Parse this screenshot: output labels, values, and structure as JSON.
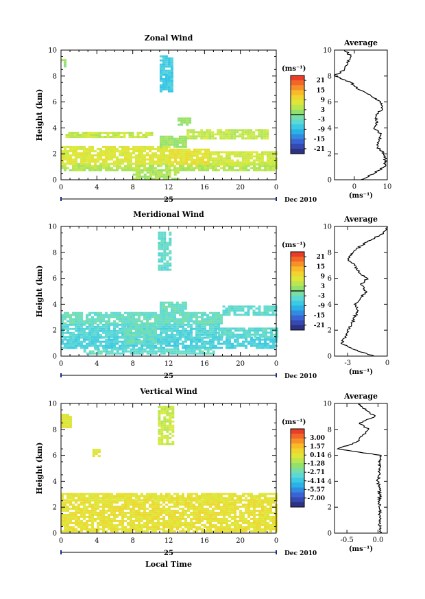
{
  "chart_data": [
    {
      "type": "heatmap",
      "title": "Zonal Wind",
      "ylabel": "Height (km)",
      "xlabel": "",
      "x_ticks": [
        "0",
        "4",
        "8",
        "12",
        "16",
        "20",
        "0"
      ],
      "y_ticks": [
        "0",
        "2",
        "4",
        "6",
        "8",
        "10"
      ],
      "xlim": [
        0,
        24
      ],
      "ylim": [
        0,
        10
      ],
      "date_day": "25",
      "date_month": "Dec 2010",
      "colorbar": {
        "unit": "(ms⁻¹)",
        "range": [
          -24,
          24
        ],
        "tick_labels": [
          "21",
          "15",
          "9",
          "3",
          "-3",
          "-9",
          "-15",
          "-21"
        ],
        "tick_values": [
          21,
          15,
          9,
          3,
          -3,
          -9,
          -15,
          -21
        ],
        "zero_line": 0
      },
      "regions": [
        {
          "x0": 0,
          "x1": 24,
          "y0": 0.7,
          "y1": 1.3,
          "value": 4
        },
        {
          "x0": 0,
          "x1": 12,
          "y0": 1.2,
          "y1": 2.6,
          "value": 7
        },
        {
          "x0": 12,
          "x1": 16.5,
          "y0": 1.2,
          "y1": 2.4,
          "value": 8
        },
        {
          "x0": 16.5,
          "x1": 24,
          "y0": 1.2,
          "y1": 2.2,
          "value": 6
        },
        {
          "x0": 8,
          "x1": 13,
          "y0": 0.1,
          "y1": 0.8,
          "value": 3
        },
        {
          "x0": 11,
          "x1": 14,
          "y0": 2.6,
          "y1": 3.4,
          "value": 2
        },
        {
          "x0": 14,
          "x1": 23,
          "y0": 3.2,
          "y1": 3.9,
          "value": 5
        },
        {
          "x0": 0.5,
          "x1": 10,
          "y0": 3.3,
          "y1": 3.7,
          "value": 5
        },
        {
          "x0": 11,
          "x1": 12.5,
          "y0": 6.8,
          "y1": 9.6,
          "value": -7
        },
        {
          "x0": 13,
          "x1": 14.5,
          "y0": 4.2,
          "y1": 4.8,
          "value": 2
        },
        {
          "x0": 0,
          "x1": 0.4,
          "y0": 8.8,
          "y1": 9.3,
          "value": 1
        }
      ],
      "average": {
        "title": "Average",
        "xlabel": "(ms⁻¹)",
        "x_ticks": [
          "0",
          "10"
        ],
        "x_tick_values": [
          0,
          10
        ],
        "xlim": [
          -6,
          10
        ],
        "heights": [
          0,
          0.5,
          1,
          1.5,
          2,
          2.5,
          3,
          3.5,
          4,
          4.5,
          5,
          5.5,
          6,
          6.5,
          7,
          7.5,
          8,
          8.5,
          9,
          9.5,
          10
        ],
        "values": [
          2,
          6,
          9,
          9.5,
          9,
          7,
          7.5,
          8,
          6,
          7,
          6.5,
          8.5,
          8,
          5,
          1,
          -1,
          -6,
          -3,
          -2,
          -1,
          -3
        ]
      }
    },
    {
      "type": "heatmap",
      "title": "Meridional Wind",
      "ylabel": "Height (km)",
      "xlabel": "",
      "x_ticks": [
        "0",
        "4",
        "8",
        "12",
        "16",
        "20",
        "0"
      ],
      "y_ticks": [
        "0",
        "2",
        "4",
        "6",
        "8",
        "10"
      ],
      "xlim": [
        0,
        24
      ],
      "ylim": [
        0,
        10
      ],
      "date_day": "25",
      "date_month": "Dec 2010",
      "colorbar": {
        "unit": "(ms⁻¹)",
        "range": [
          -24,
          24
        ],
        "tick_labels": [
          "21",
          "15",
          "9",
          "3",
          "-3",
          "-9",
          "-15",
          "-21"
        ],
        "tick_values": [
          21,
          15,
          9,
          3,
          -3,
          -9,
          -15,
          -21
        ],
        "zero_line": 0
      },
      "regions": [
        {
          "x0": 0,
          "x1": 24,
          "y0": 0.6,
          "y1": 1.5,
          "value": -6
        },
        {
          "x0": 0,
          "x1": 17.5,
          "y0": 1.5,
          "y1": 2.5,
          "value": -5
        },
        {
          "x0": 17.5,
          "x1": 24,
          "y0": 1.5,
          "y1": 2.2,
          "value": -4
        },
        {
          "x0": 0,
          "x1": 18,
          "y0": 2.5,
          "y1": 3.4,
          "value": -3
        },
        {
          "x0": 7,
          "x1": 10.5,
          "y0": 1.0,
          "y1": 2.5,
          "value": -3
        },
        {
          "x0": 2.5,
          "x1": 17,
          "y0": 0.2,
          "y1": 0.6,
          "value": -4
        },
        {
          "x0": 11,
          "x1": 14,
          "y0": 3.4,
          "y1": 4.2,
          "value": -3
        },
        {
          "x0": 18,
          "x1": 24,
          "y0": 3.2,
          "y1": 3.9,
          "value": -4
        },
        {
          "x0": 10.8,
          "x1": 12.2,
          "y0": 6.6,
          "y1": 9.6,
          "value": -4
        }
      ],
      "average": {
        "title": "Average",
        "xlabel": "(ms⁻¹)",
        "x_ticks": [
          "-3",
          "0"
        ],
        "x_tick_values": [
          -3,
          0
        ],
        "xlim": [
          -4,
          0
        ],
        "heights": [
          0,
          0.5,
          1,
          1.5,
          2,
          2.5,
          3,
          3.5,
          4,
          4.5,
          5,
          5.5,
          6,
          6.5,
          7,
          7.5,
          8,
          8.5,
          9,
          9.5,
          10
        ],
        "values": [
          -1,
          -2.5,
          -3.5,
          -3.2,
          -3,
          -2.7,
          -2.5,
          -2.2,
          -2.5,
          -2,
          -1.6,
          -2,
          -1.5,
          -2.2,
          -2.5,
          -3,
          -2.6,
          -2,
          -1.2,
          -0.3,
          0
        ]
      }
    },
    {
      "type": "heatmap",
      "title": "Vertical Wind",
      "ylabel": "Height (km)",
      "xlabel": "Local Time",
      "x_ticks": [
        "0",
        "4",
        "8",
        "12",
        "16",
        "20",
        "0"
      ],
      "y_ticks": [
        "0",
        "2",
        "4",
        "6",
        "8",
        "10"
      ],
      "xlim": [
        0,
        24
      ],
      "ylim": [
        0,
        10
      ],
      "date_day": "25",
      "date_month": "Dec 2010",
      "colorbar": {
        "unit": "(ms⁻¹)",
        "range": [
          -8.5,
          4.5
        ],
        "tick_labels": [
          "3.00",
          "1.57",
          "0.14",
          "-1.28",
          "-2.71",
          "-4.14",
          "-5.57",
          "-7.00"
        ],
        "tick_values": [
          3.0,
          1.57,
          0.14,
          -1.28,
          -2.71,
          -4.14,
          -5.57,
          -7.0
        ]
      },
      "regions": [
        {
          "x0": 0,
          "x1": 24,
          "y0": 0.2,
          "y1": 2.6,
          "value": 0.3
        },
        {
          "x0": 0,
          "x1": 24,
          "y0": 2.6,
          "y1": 3.1,
          "value": 0.2
        },
        {
          "x0": 10.8,
          "x1": 12.6,
          "y0": 6.8,
          "y1": 9.8,
          "value": -0.5
        },
        {
          "x0": 0,
          "x1": 1.2,
          "y0": 8.2,
          "y1": 9.2,
          "value": 0.1
        },
        {
          "x0": 3.5,
          "x1": 4.2,
          "y0": 6.0,
          "y1": 6.5,
          "value": 0.1
        }
      ],
      "average": {
        "title": "Average",
        "xlabel": "(ms⁻¹)",
        "x_ticks": [
          "-0.5",
          "0.0"
        ],
        "x_tick_values": [
          -0.5,
          0.0
        ],
        "xlim": [
          -0.7,
          0.15
        ],
        "heights": [
          0,
          0.5,
          1,
          1.5,
          2,
          2.5,
          3,
          3.5,
          4,
          4.5,
          5,
          5.5,
          6,
          6.5,
          7,
          7.5,
          8,
          8.5,
          9,
          9.5,
          10
        ],
        "values": [
          0.04,
          0.03,
          0.02,
          0.03,
          0.02,
          0.02,
          0.03,
          0.02,
          0.0,
          0.02,
          0.03,
          0.01,
          0.05,
          -0.65,
          -0.35,
          -0.25,
          -0.15,
          -0.3,
          -0.05,
          -0.2,
          -0.3
        ]
      }
    }
  ]
}
